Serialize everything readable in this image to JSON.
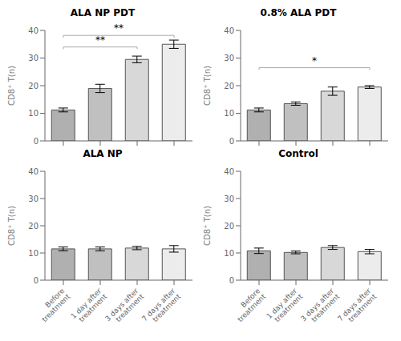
{
  "chart_data": [
    {
      "type": "bar",
      "title": "ALA NP PDT",
      "categories": [
        null,
        null,
        null,
        null
      ],
      "values": [
        11.2,
        19.0,
        29.5,
        35.0
      ],
      "errors": [
        0.7,
        1.5,
        1.2,
        1.5
      ],
      "colors": [
        "#b0b0b0",
        "#c0c0c0",
        "#d8d8d8",
        "#ececec"
      ],
      "ylabel": "CD8⁺ T(n)",
      "ylim": [
        0,
        40
      ],
      "yticks": [
        0,
        10,
        20,
        30,
        40
      ],
      "grid": false,
      "annotations": [
        {
          "text": "**",
          "x1": 0,
          "x2": 3,
          "y": 38.2,
          "color": "#aaaaaa"
        },
        {
          "text": "**",
          "x1": 0,
          "x2": 2,
          "y": 34.0,
          "color": "#aaaaaa"
        }
      ]
    },
    {
      "type": "bar",
      "title": "0.8% ALA PDT",
      "categories": [
        null,
        null,
        null,
        null
      ],
      "values": [
        11.2,
        13.5,
        18.0,
        19.5
      ],
      "errors": [
        0.7,
        0.6,
        1.5,
        0.5
      ],
      "colors": [
        "#b0b0b0",
        "#c0c0c0",
        "#d8d8d8",
        "#ececec"
      ],
      "ylabel": "CD8⁺ T(n)",
      "ylim": [
        0,
        40
      ],
      "yticks": [
        0,
        10,
        20,
        30,
        40
      ],
      "grid": false,
      "annotations": [
        {
          "text": "*",
          "x1": 0,
          "x2": 3,
          "y": 26.5,
          "color": "#aaaaaa"
        }
      ]
    },
    {
      "type": "bar",
      "title": "ALA NP",
      "categories": [
        "Before\ntreatment",
        "1 day after\ntreatment",
        "3 days after\ntreatment",
        "7 days after\ntreatment"
      ],
      "values": [
        11.5,
        11.5,
        11.8,
        11.5
      ],
      "errors": [
        0.7,
        0.7,
        0.6,
        1.2
      ],
      "colors": [
        "#b0b0b0",
        "#c0c0c0",
        "#d8d8d8",
        "#ececec"
      ],
      "ylabel": "CD8⁺ T(n)",
      "ylim": [
        0,
        40
      ],
      "yticks": [
        0,
        10,
        20,
        30,
        40
      ],
      "grid": false,
      "annotations": []
    },
    {
      "type": "bar",
      "title": "Control",
      "categories": [
        "Before\ntreatment",
        "1 day after\ntreatment",
        "3 days after\ntreatment",
        "7 days after\ntreatment"
      ],
      "values": [
        10.8,
        10.2,
        12.0,
        10.5
      ],
      "errors": [
        1.0,
        0.5,
        0.7,
        0.8
      ],
      "colors": [
        "#b0b0b0",
        "#c0c0c0",
        "#d8d8d8",
        "#ececec"
      ],
      "ylabel": "CD8⁺ T(n)",
      "ylim": [
        0,
        40
      ],
      "yticks": [
        0,
        10,
        20,
        30,
        40
      ],
      "grid": false,
      "annotations": []
    }
  ]
}
